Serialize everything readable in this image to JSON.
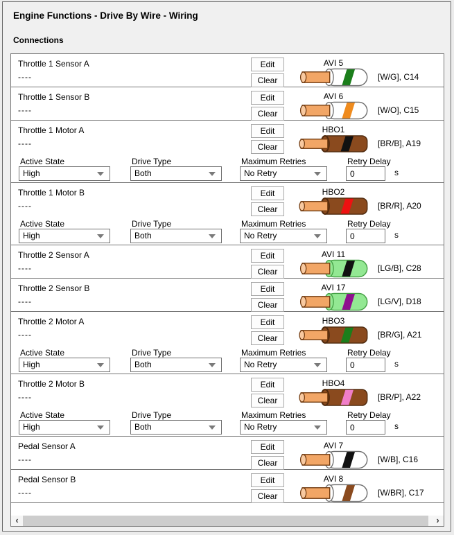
{
  "window": {
    "title": "Engine Functions - Drive By Wire - Wiring"
  },
  "section": {
    "title": "Connections"
  },
  "buttons": {
    "edit": "Edit",
    "clear": "Clear"
  },
  "fields": {
    "active_state": {
      "label": "Active State",
      "value": "High"
    },
    "drive_type": {
      "label": "Drive Type",
      "value": "Both"
    },
    "maximum_retries": {
      "label": "Maximum Retries",
      "value": "No Retry"
    },
    "retry_delay": {
      "label": "Retry Delay",
      "value": "0",
      "unit": "s"
    }
  },
  "scrollbar": {
    "left_arrow": "‹",
    "right_arrow": "›"
  },
  "wire_palette": {
    "copper": "#F2A666",
    "copper_cap": "#F8C9A0",
    "copper_outline": "#70390E",
    "white_sheath": "#FFFFFF",
    "white_outline": "#6E6E6E",
    "green_sheath": "#93E893",
    "green_outline": "#44A044",
    "brown_sheath": "#8A4A1E",
    "brown_outline": "#4F2A0E"
  },
  "connections": [
    {
      "name": "Throttle 1 Sensor A",
      "value": "----",
      "channel": "AVI 5",
      "pin": "[W/G], C14",
      "wire": {
        "type": "avi",
        "sheath": "white",
        "stripe": "#1B7E1B"
      },
      "has_options": false
    },
    {
      "name": "Throttle 1 Sensor B",
      "value": "----",
      "channel": "AVI 6",
      "pin": "[W/O], C15",
      "wire": {
        "type": "avi",
        "sheath": "white",
        "stripe": "#EF8B1E"
      },
      "has_options": false
    },
    {
      "name": "Throttle 1 Motor A",
      "value": "----",
      "channel": "HBO1",
      "pin": "[BR/B], A19",
      "wire": {
        "type": "hbo",
        "sheath": "brown",
        "stripe": "#111111"
      },
      "has_options": true
    },
    {
      "name": "Throttle 1 Motor B",
      "value": "----",
      "channel": "HBO2",
      "pin": "[BR/R], A20",
      "wire": {
        "type": "hbo",
        "sheath": "brown",
        "stripe": "#EE1111"
      },
      "has_options": true
    },
    {
      "name": "Throttle 2 Sensor A",
      "value": "----",
      "channel": "AVI 11",
      "pin": "[LG/B], C28",
      "wire": {
        "type": "avi",
        "sheath": "green",
        "stripe": "#111111"
      },
      "has_options": false
    },
    {
      "name": "Throttle 2 Sensor B",
      "value": "----",
      "channel": "AVI 17",
      "pin": "[LG/V], D18",
      "wire": {
        "type": "avi",
        "sheath": "green",
        "stripe": "#8E108E"
      },
      "has_options": false
    },
    {
      "name": "Throttle 2 Motor A",
      "value": "----",
      "channel": "HBO3",
      "pin": "[BR/G], A21",
      "wire": {
        "type": "hbo",
        "sheath": "brown",
        "stripe": "#1B7E1B"
      },
      "has_options": true
    },
    {
      "name": "Throttle 2 Motor B",
      "value": "----",
      "channel": "HBO4",
      "pin": "[BR/P], A22",
      "wire": {
        "type": "hbo",
        "sheath": "brown",
        "stripe": "#F07EC8"
      },
      "has_options": true
    },
    {
      "name": "Pedal Sensor A",
      "value": "----",
      "channel": "AVI 7",
      "pin": "[W/B], C16",
      "wire": {
        "type": "avi",
        "sheath": "white",
        "stripe": "#111111"
      },
      "has_options": false
    },
    {
      "name": "Pedal Sensor B",
      "value": "----",
      "channel": "AVI 8",
      "pin": "[W/BR], C17",
      "wire": {
        "type": "avi",
        "sheath": "white",
        "stripe": "#8A4A1E"
      },
      "has_options": false
    }
  ]
}
